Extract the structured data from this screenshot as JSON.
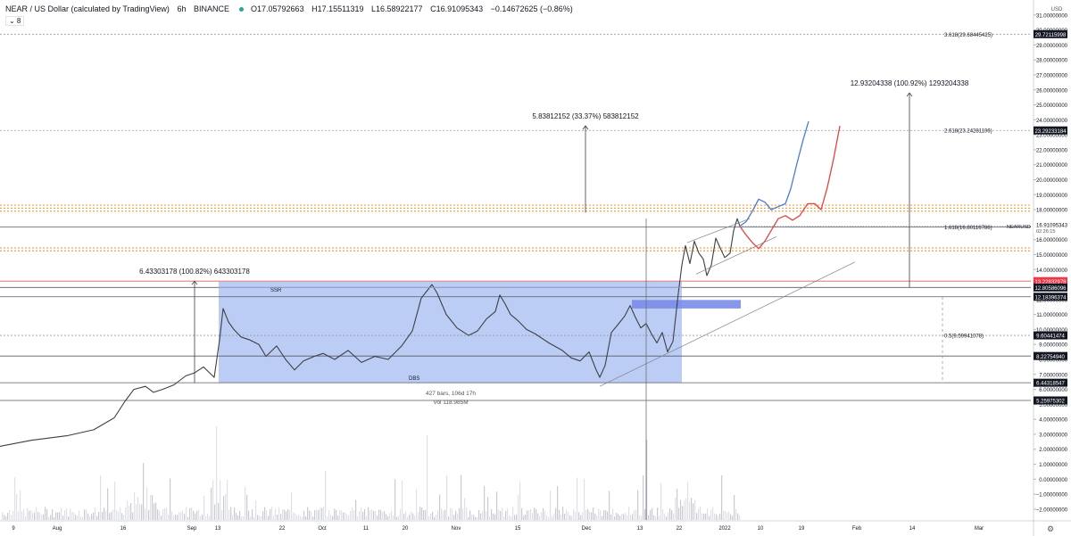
{
  "header": {
    "symbol": "NEAR / US Dollar (calculated by TradingView)",
    "interval": "6h",
    "exchange": "BINANCE",
    "open": "O17.05792663",
    "high": "H17.15511319",
    "low": "L16.58922177",
    "close": "C16.91095343",
    "change": "−0.14672625 (−0.86%)",
    "indicator_toggle": "⌄ 8",
    "status_color": "#26a69a"
  },
  "chart_data": {
    "type": "line",
    "currency": "USD",
    "ylim": [
      -2.7,
      31.2
    ],
    "y_ticks": [
      -2,
      -1,
      0,
      1,
      2,
      3,
      4,
      5,
      6,
      7,
      8,
      9,
      10,
      11,
      12,
      13,
      14,
      15,
      16,
      17,
      18,
      19,
      20,
      21,
      22,
      23,
      24,
      25,
      26,
      27,
      28,
      29,
      30,
      31
    ],
    "x_labels": [
      "9",
      "Aug",
      "16",
      "Sep",
      "13",
      "22",
      "Oct",
      "11",
      "20",
      "Nov",
      "15",
      "Dec",
      "13",
      "22",
      "2022",
      "10",
      "19",
      "Feb",
      "14",
      "Mar"
    ],
    "price_series": {
      "name": "NEARUSD",
      "x": [
        0,
        35,
        75,
        105,
        128,
        140,
        150,
        163,
        172,
        182,
        195,
        208,
        218,
        228,
        240,
        246,
        250,
        256,
        262,
        270,
        280,
        290,
        298,
        310,
        320,
        330,
        340,
        352,
        362,
        375,
        390,
        405,
        420,
        435,
        450,
        462,
        472,
        480,
        484,
        490,
        500,
        512,
        525,
        535,
        545,
        555,
        560,
        566,
        572,
        580,
        590,
        600,
        615,
        630,
        640,
        650,
        660,
        668,
        672,
        678,
        685,
        692,
        700,
        706,
        712,
        718,
        724,
        730,
        736,
        742,
        748,
        754,
        760,
        764,
        768,
        773,
        778,
        783,
        788,
        792,
        797,
        802,
        808,
        812,
        818,
        822,
        826,
        829
      ],
      "y": [
        2.2,
        2.6,
        2.9,
        3.3,
        4.1,
        5.2,
        6.0,
        6.2,
        5.8,
        6.0,
        6.3,
        6.9,
        7.1,
        7.5,
        6.8,
        9.3,
        11.4,
        10.5,
        10.0,
        9.5,
        9.3,
        9.0,
        8.2,
        8.9,
        8.0,
        7.3,
        7.9,
        8.2,
        8.4,
        8.0,
        8.6,
        7.8,
        8.2,
        8.0,
        8.9,
        9.9,
        12.1,
        12.7,
        13.0,
        12.4,
        11.0,
        10.1,
        9.6,
        9.9,
        10.7,
        11.2,
        12.3,
        11.7,
        11.0,
        10.6,
        10.0,
        9.7,
        9.1,
        8.6,
        8.1,
        7.9,
        8.5,
        7.3,
        6.8,
        7.6,
        9.8,
        10.3,
        10.9,
        11.6,
        10.8,
        10.1,
        10.4,
        9.7,
        9.1,
        9.8,
        8.5,
        9.2,
        12.4,
        14.3,
        15.6,
        14.4,
        15.9,
        15.1,
        14.7,
        13.6,
        14.3,
        16.1,
        15.3,
        14.8,
        15.1,
        16.6,
        17.4,
        16.9
      ]
    },
    "projections": [
      {
        "name": "blue",
        "color": "#4a7ad8",
        "x": [
          829,
          836,
          843,
          850,
          857,
          864,
          872,
          880,
          886,
          893,
          900,
          906
        ],
        "y": [
          16.9,
          17.2,
          17.9,
          18.7,
          18.5,
          18.0,
          18.2,
          18.4,
          19.4,
          21.1,
          22.7,
          23.9
        ]
      },
      {
        "name": "red",
        "color": "#e0453f",
        "x": [
          829,
          836,
          843,
          850,
          857,
          864,
          872,
          880,
          888,
          896,
          905,
          913,
          920,
          927,
          934,
          941
        ],
        "y": [
          16.9,
          16.3,
          15.8,
          15.4,
          15.9,
          16.6,
          17.4,
          17.6,
          17.3,
          17.6,
          18.4,
          18.4,
          18.0,
          19.5,
          21.4,
          23.6
        ]
      }
    ],
    "range_box": {
      "color": "#a9bff2",
      "price_low": 6.44318547,
      "price_high": 13.22832978,
      "label_top": "SSR",
      "label_bottom": "DBS"
    },
    "order_block": {
      "color": "#7a8ce8",
      "price_low": 11.4,
      "price_high": 11.97
    },
    "stats": {
      "bars": "427 bars, 106d 17h",
      "vol": "Vol 118.985M"
    },
    "horizontal_levels": [
      {
        "price": 29.72115998,
        "style": "dotted",
        "label": "29.72115998",
        "badge": "#131722"
      },
      {
        "price": 23.29233184,
        "style": "dotted",
        "label": "23.29233184",
        "badge": "#131722"
      },
      {
        "price": 18.3,
        "style": "orange-dotted",
        "color": "#f0a04b"
      },
      {
        "price": 18.1,
        "style": "orange-dotted",
        "color": "#f0a04b"
      },
      {
        "price": 17.9,
        "style": "orange-dotted",
        "color": "#f0a04b"
      },
      {
        "price": 16.83875764,
        "style": "solid",
        "label": "16.83875764",
        "badge": "#131722"
      },
      {
        "price": 15.45,
        "style": "orange-dotted",
        "color": "#f0a04b"
      },
      {
        "price": 15.25,
        "style": "orange-dotted",
        "color": "#f0a04b"
      },
      {
        "price": 13.22832978,
        "style": "solid-red",
        "color": "#e48f8f",
        "label": "13.22832978",
        "badge": "#f23645"
      },
      {
        "price": 12.80586096,
        "style": "solid",
        "label": "12.80586096",
        "badge": "#131722"
      },
      {
        "price": 12.18396374,
        "style": "solid",
        "label": "12.18396374",
        "badge": "#131722"
      },
      {
        "price": 9.60441474,
        "style": "dotted",
        "label": "9.60441474",
        "badge": "#131722"
      },
      {
        "price": 8.2275494,
        "style": "solid",
        "label": "8.22754940",
        "badge": "#131722"
      },
      {
        "price": 6.44318547,
        "style": "solid",
        "label": "6.44318547",
        "badge": "#131722"
      },
      {
        "price": 5.25975302,
        "style": "solid",
        "label": "5.25975302",
        "badge": "#131722"
      }
    ],
    "last_price": {
      "price": 16.91095343,
      "label": "16.91095343",
      "countdown": "02:26:15",
      "ticker": "NEARUSD"
    },
    "fib_labels": [
      {
        "price": 29.72115998,
        "text": "3.618(29.68445425)"
      },
      {
        "price": 23.29233184,
        "text": "2.618(23.24281106)"
      },
      {
        "price": 16.83875764,
        "text": "1.618(16.80116786)"
      },
      {
        "price": 9.60441474,
        "text": "0.5(9.59941078)"
      }
    ],
    "measures": [
      {
        "text": "6.43303178 (100.82%) 643303178",
        "x": 218,
        "from": 6.44,
        "to": 13.23
      },
      {
        "text": "5.83812152 (33.37%) 583812152",
        "x": 656,
        "from": 17.8,
        "to": 23.6
      },
      {
        "text": "12.93204338 (100.92%) 1293204338",
        "x": 1019,
        "from": 12.8,
        "to": 25.8
      }
    ]
  }
}
